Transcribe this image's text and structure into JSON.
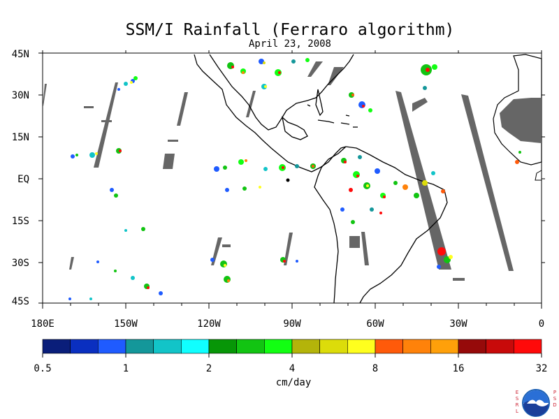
{
  "title": "SSM/I Rainfall (Ferraro algorithm)",
  "date": "April 23, 2008",
  "lat_labels": [
    "45N",
    "30N",
    "15N",
    "EQ",
    "15S",
    "30S",
    "45S"
  ],
  "lon_labels": [
    "180E",
    "150W",
    "120W",
    "90W",
    "60W",
    "30W",
    "0"
  ],
  "colorbar": {
    "units": "cm/day",
    "tick_labels": [
      "0.5",
      "1",
      "2",
      "4",
      "8",
      "16",
      "32"
    ],
    "colors": [
      "#0a1e7a",
      "#0a2fc0",
      "#1f5bff",
      "#14979a",
      "#12c4c8",
      "#10ffff",
      "#079607",
      "#12c412",
      "#12ff12",
      "#b4b40a",
      "#dcdc0a",
      "#ffff1e",
      "#ff5a0a",
      "#ff820a",
      "#ffa00a",
      "#960a0a",
      "#c80a0a",
      "#ff0a0a"
    ]
  },
  "logo": {
    "left_letters": [
      "E",
      "S",
      "R",
      "L"
    ],
    "right_letters": [
      "P",
      "S",
      "D"
    ],
    "text": "NOAA"
  }
}
